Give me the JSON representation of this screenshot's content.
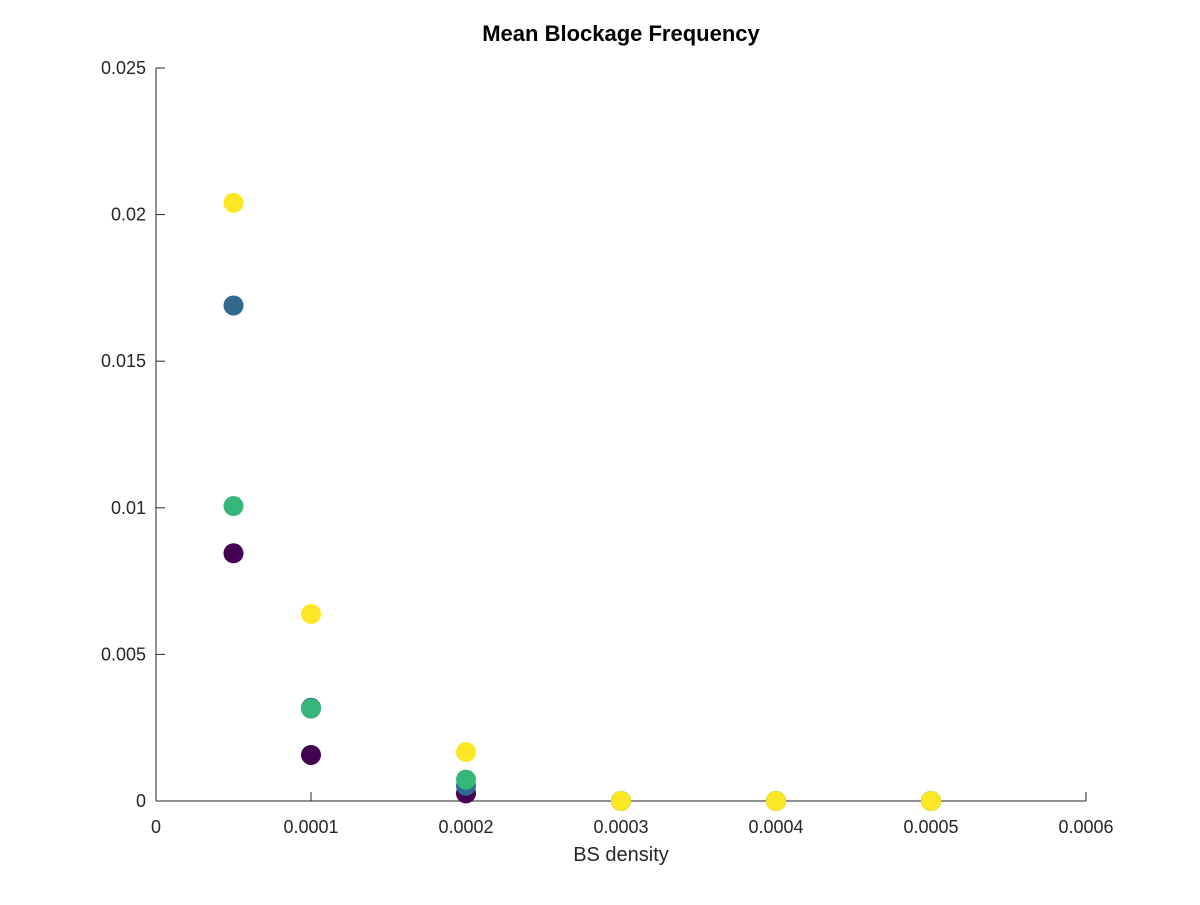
{
  "chart_data": {
    "type": "scatter",
    "title": "Mean Blockage Frequency",
    "xlabel": "BS density",
    "ylabel": "",
    "xlim": [
      0,
      0.0006
    ],
    "ylim": [
      0,
      0.025
    ],
    "x_ticks": [
      "0",
      "0.0001",
      "0.0002",
      "0.0003",
      "0.0004",
      "0.0005",
      "0.0006"
    ],
    "y_ticks": [
      "0",
      "0.005",
      "0.01",
      "0.015",
      "0.02",
      "0.025"
    ],
    "x_tick_values": [
      0,
      0.0001,
      0.0002,
      0.0003,
      0.0004,
      0.0005,
      0.0006
    ],
    "y_tick_values": [
      0,
      0.005,
      0.01,
      0.015,
      0.02,
      0.025
    ],
    "grid": false,
    "series": [
      {
        "color": "#440154",
        "points": [
          {
            "x": 5e-05,
            "y": 0.00845
          },
          {
            "x": 0.0001,
            "y": 0.00157
          },
          {
            "x": 0.0002,
            "y": 0.00026
          },
          {
            "x": 0.0003,
            "y": 0.0
          },
          {
            "x": 0.0004,
            "y": 0.0
          },
          {
            "x": 0.0005,
            "y": 0.0
          }
        ]
      },
      {
        "color": "#31688e",
        "points": [
          {
            "x": 5e-05,
            "y": 0.0169
          },
          {
            "x": 0.0001,
            "y": 0.00318
          },
          {
            "x": 0.0002,
            "y": 0.00052
          },
          {
            "x": 0.0003,
            "y": 0.0
          },
          {
            "x": 0.0004,
            "y": 0.0
          },
          {
            "x": 0.0005,
            "y": 0.0
          }
        ]
      },
      {
        "color": "#35b779",
        "points": [
          {
            "x": 5e-05,
            "y": 0.01006
          },
          {
            "x": 0.0001,
            "y": 0.00315
          },
          {
            "x": 0.0002,
            "y": 0.00073
          },
          {
            "x": 0.0003,
            "y": 0.0
          },
          {
            "x": 0.0004,
            "y": 0.0
          },
          {
            "x": 0.0005,
            "y": 0.0
          }
        ]
      },
      {
        "color": "#fde725",
        "points": [
          {
            "x": 5e-05,
            "y": 0.0204
          },
          {
            "x": 0.0001,
            "y": 0.00638
          },
          {
            "x": 0.0002,
            "y": 0.00167
          },
          {
            "x": 0.0003,
            "y": 0.0
          },
          {
            "x": 0.0004,
            "y": 0.0
          },
          {
            "x": 0.0005,
            "y": 0.0
          }
        ]
      }
    ]
  }
}
